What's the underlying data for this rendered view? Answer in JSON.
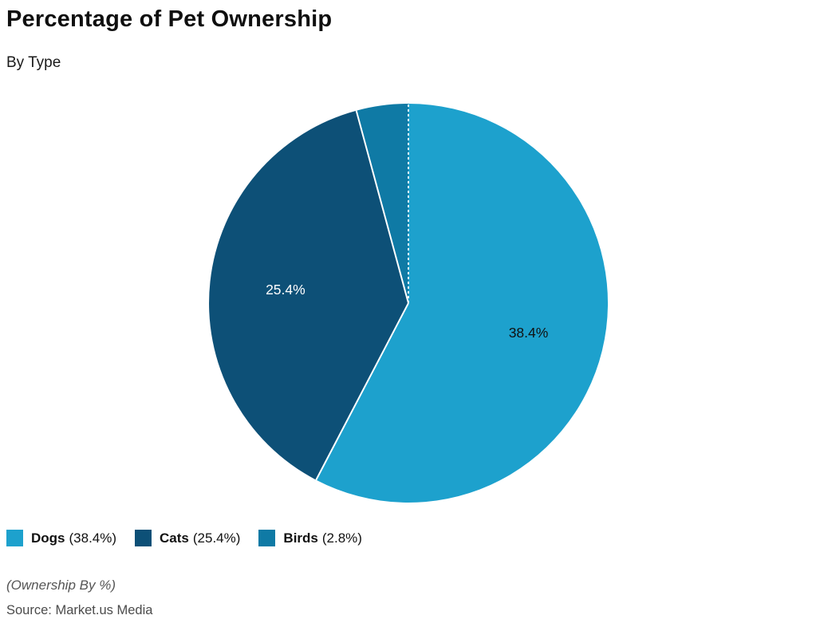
{
  "header": {
    "title": "Percentage of Pet Ownership",
    "subtitle": "By Type"
  },
  "chart_data": {
    "type": "pie",
    "title": "Percentage of Pet Ownership",
    "subtitle": "By Type",
    "unit": "%",
    "start_angle_deg": 0,
    "direction": "clockwise",
    "angles_normalized_to_total": true,
    "slices": [
      {
        "label": "Dogs",
        "value": 38.4,
        "display": "38.4%",
        "color": "#1da1cd",
        "label_color": "#111111",
        "show_label": true
      },
      {
        "label": "Cats",
        "value": 25.4,
        "display": "25.4%",
        "color": "#0d5077",
        "label_color": "#ffffff",
        "show_label": true
      },
      {
        "label": "Birds",
        "value": 2.8,
        "display": "2.8%",
        "color": "#0f7aa5",
        "label_color": "#ffffff",
        "show_label": false
      }
    ],
    "divider_color": "#ffffff",
    "legend_position": "bottom-left"
  },
  "legend": {
    "items": [
      {
        "name": "Dogs",
        "pct": "(38.4%)"
      },
      {
        "name": "Cats",
        "pct": "(25.4%)"
      },
      {
        "name": "Birds",
        "pct": "(2.8%)"
      }
    ]
  },
  "footer": {
    "note": "(Ownership By %)",
    "source": "Source: Market.us Media"
  }
}
